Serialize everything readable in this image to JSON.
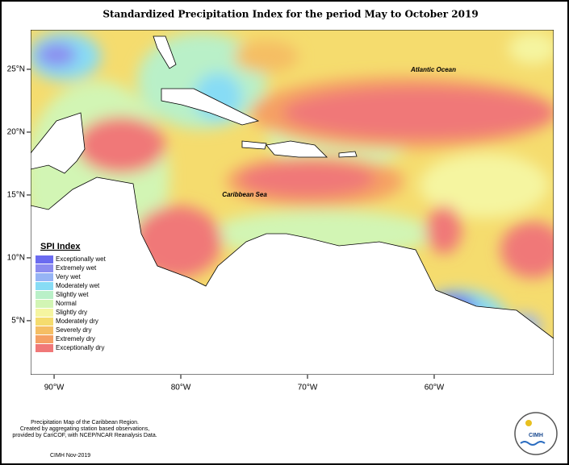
{
  "title": "Standardized Precipitation Index for the period May to October 2019",
  "map": {
    "xlim": [
      -91.85,
      -50.57
    ],
    "ylim": [
      0.7,
      28.14
    ],
    "xticks": [
      {
        "value": -90,
        "label": "90°W"
      },
      {
        "value": -80,
        "label": "80°W"
      },
      {
        "value": -70,
        "label": "70°W"
      },
      {
        "value": -60,
        "label": "60°W"
      }
    ],
    "yticks": [
      {
        "value": 25,
        "label": "25°N"
      },
      {
        "value": 20,
        "label": "20°N"
      },
      {
        "value": 15,
        "label": "15°N"
      },
      {
        "value": 10,
        "label": "10°N"
      },
      {
        "value": 5,
        "label": "5°N"
      }
    ],
    "labels": [
      "Atlantic Ocean",
      "Caribbean Sea"
    ]
  },
  "legend": {
    "title": "SPI Index",
    "entries": [
      {
        "label": "Exceptionally wet",
        "color": "#6b6bf0"
      },
      {
        "label": "Extremely wet",
        "color": "#8c8cf0"
      },
      {
        "label": "Very wet",
        "color": "#96b4f5"
      },
      {
        "label": "Moderately wet",
        "color": "#87dcf5"
      },
      {
        "label": "Slightly wet",
        "color": "#b9f0c8"
      },
      {
        "label": "Normal",
        "color": "#d2f5b4"
      },
      {
        "label": "Slightly dry",
        "color": "#f5f5a0"
      },
      {
        "label": "Moderately dry",
        "color": "#f5dc6e"
      },
      {
        "label": "Severely dry",
        "color": "#f5be64"
      },
      {
        "label": "Extremely dry",
        "color": "#f5a064"
      },
      {
        "label": "Exceptionally dry",
        "color": "#f07878"
      }
    ]
  },
  "footer": {
    "lines": [
      "Precipitation Map of the Caribbean Region.",
      "Created by aggregating station based observations,",
      "provided by CariCOF, with NCEP/NCAR Reanalysis Data."
    ],
    "credit": "CIMH Nov-2019",
    "logo": "CIMH"
  }
}
